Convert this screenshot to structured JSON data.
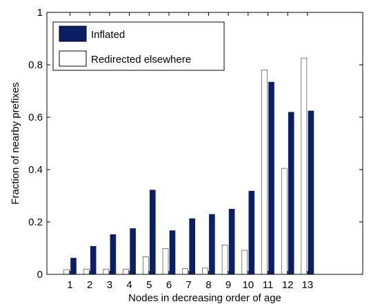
{
  "chart_data": {
    "type": "bar",
    "xlabel": "Nodes in decreasing order of age",
    "ylabel": "Fraction of nearby prefixes",
    "ylim": [
      0,
      1
    ],
    "yticks": [
      "0",
      "0.2",
      "0.4",
      "0.6",
      "0.8",
      "1"
    ],
    "categories": [
      "1",
      "2",
      "3",
      "4",
      "5",
      "6",
      "7",
      "8",
      "9",
      "10",
      "11",
      "12",
      "13"
    ],
    "legend_position": "top-left",
    "series": [
      {
        "name": "Inflated",
        "color": "#0a1f66",
        "fill": "solid",
        "values": [
          0.062,
          0.107,
          0.152,
          0.175,
          0.322,
          0.167,
          0.213,
          0.229,
          0.249,
          0.318,
          0.734,
          0.619,
          0.624
        ]
      },
      {
        "name": "Redirected elsewhere",
        "color": "#ffffff",
        "fill": "hollow",
        "values": [
          0.018,
          0.02,
          0.02,
          0.02,
          0.067,
          0.098,
          0.022,
          0.024,
          0.112,
          0.092,
          0.781,
          0.405,
          0.826
        ]
      }
    ]
  }
}
